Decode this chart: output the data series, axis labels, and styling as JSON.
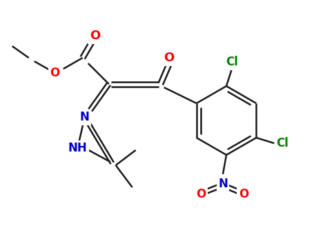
{
  "background_color": "#ffffff",
  "bond_color": "#1a1a1a",
  "bond_width": 1.8,
  "atom_colors": {
    "O": "#ff0000",
    "N": "#0000cc",
    "Cl": "#008000",
    "C": "#1a1a1a",
    "H": "#1a1a1a"
  },
  "figsize": [
    4.55,
    3.5
  ],
  "dpi": 100
}
